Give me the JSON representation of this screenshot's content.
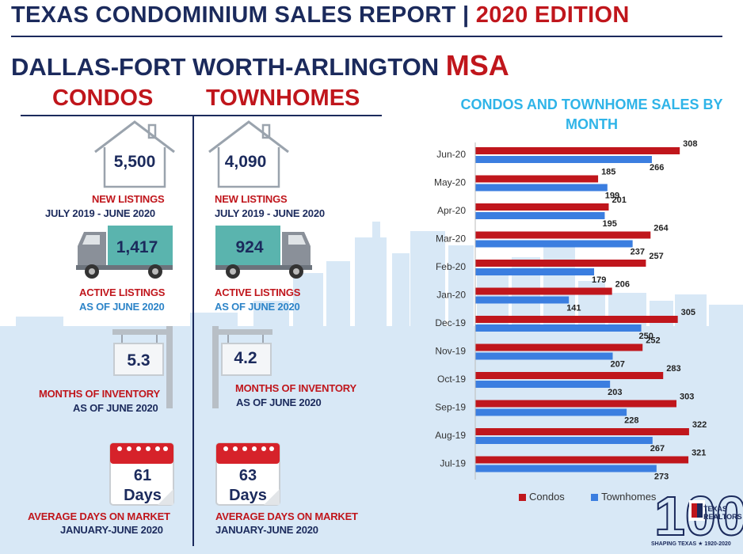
{
  "header": {
    "title_main": "TEXAS CONDOMINIUM SALES REPORT | ",
    "title_edition": "2020 EDITION",
    "msa_name": "DALLAS-FORT WORTH-ARLINGTON ",
    "msa_suffix": "MSA"
  },
  "columns": {
    "condos": {
      "heading": "CONDOS",
      "new_listings": "5,500",
      "new_listings_label": "NEW LISTINGS",
      "new_listings_period": "JULY 2019 - JUNE 2020",
      "active_listings": "1,417",
      "active_listings_label": "ACTIVE LISTINGS",
      "active_listings_period": "AS OF JUNE 2020",
      "months_inventory": "5.3",
      "months_inventory_label": "MONTHS OF INVENTORY",
      "months_inventory_period": "AS OF JUNE 2020",
      "days_on_market": "61",
      "days_unit": "Days",
      "days_label": "AVERAGE DAYS ON MARKET",
      "days_period": "JANUARY-JUNE 2020"
    },
    "townhomes": {
      "heading": "TOWNHOMES",
      "new_listings": "4,090",
      "new_listings_label": "NEW LISTINGS",
      "new_listings_period": "JULY 2019 - JUNE 2020",
      "active_listings": "924",
      "active_listings_label": "ACTIVE LISTINGS",
      "active_listings_period": "AS OF JUNE 2020",
      "months_inventory": "4.2",
      "months_inventory_label": "MONTHS OF INVENTORY",
      "months_inventory_period": "AS OF JUNE 2020",
      "days_on_market": "63",
      "days_unit": "Days",
      "days_label": "AVERAGE DAYS ON MARKET",
      "days_period": "JANUARY-JUNE 2020"
    }
  },
  "chart_data": {
    "type": "bar",
    "orientation": "horizontal",
    "title": "CONDOS AND TOWNHOME SALES BY MONTH",
    "categories": [
      "Jun-20",
      "May-20",
      "Apr-20",
      "Mar-20",
      "Feb-20",
      "Jan-20",
      "Dec-19",
      "Nov-19",
      "Oct-19",
      "Sep-19",
      "Aug-19",
      "Jul-19"
    ],
    "series": [
      {
        "name": "Condos",
        "color": "#c0161c",
        "values": [
          308,
          185,
          201,
          264,
          257,
          206,
          305,
          252,
          283,
          303,
          322,
          321
        ]
      },
      {
        "name": "Townhomes",
        "color": "#3b7ee0",
        "values": [
          266,
          199,
          195,
          237,
          179,
          141,
          250,
          207,
          203,
          228,
          267,
          273
        ]
      }
    ],
    "xlim": [
      0,
      340
    ],
    "grid": false,
    "data_labels": true,
    "legend": "bottom"
  },
  "colors": {
    "navy": "#1b2a5c",
    "red": "#c0161c",
    "condo_bar": "#c0161c",
    "townhome_bar": "#3b7ee0",
    "chart_title": "#2fb4e8",
    "truck_body": "#5ab4ae",
    "skyline": "#d8e8f6"
  },
  "icons": {
    "house": "house-outline-icon",
    "truck": "delivery-truck-icon",
    "sign": "hanging-sign-icon",
    "calendar": "calendar-icon"
  },
  "logo": {
    "number_mark": "100",
    "brand_line1": "TEXAS",
    "brand_line2": "REALTORS",
    "tagline": "SHAPING TEXAS ★ 1920-2020"
  }
}
